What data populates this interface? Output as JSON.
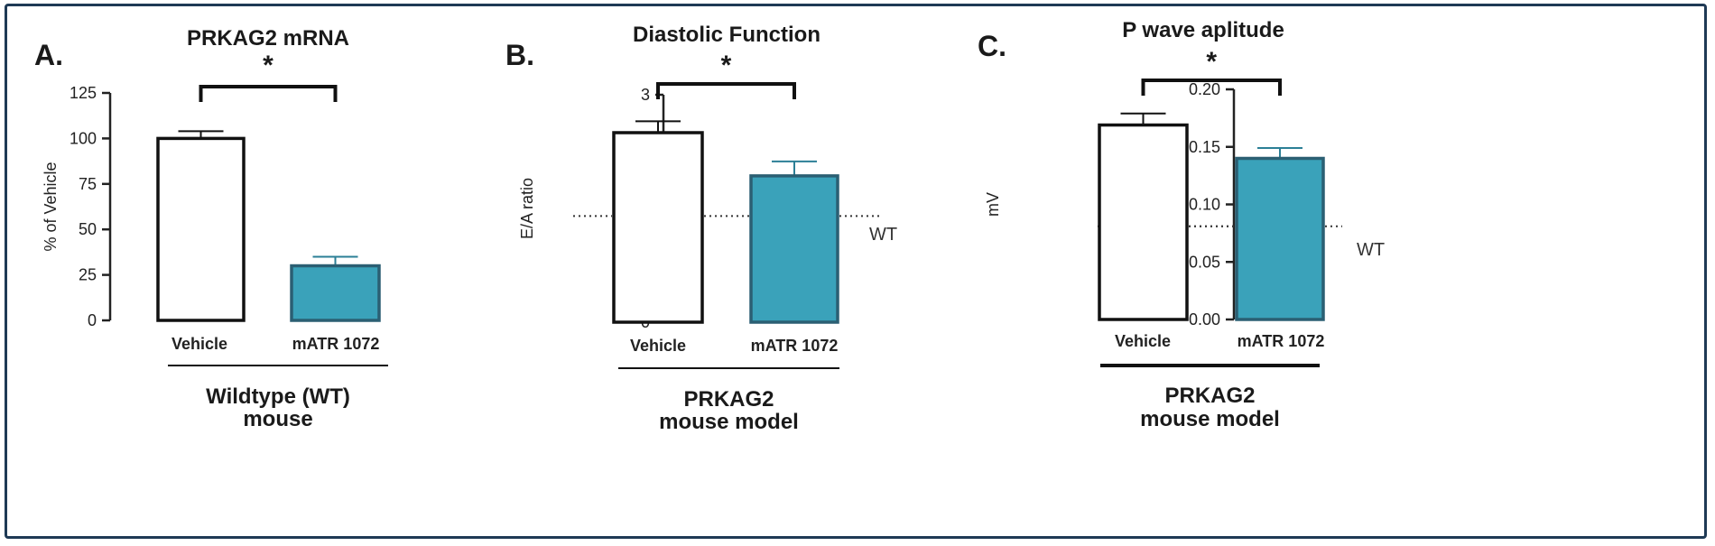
{
  "colors": {
    "frame": "#1f3a55",
    "vehicle_fill": "#ffffff",
    "treated_fill": "#3aa2ba",
    "treated_stroke": "#2b5f73",
    "ink": "#1a1a1a"
  },
  "chart_data": [
    {
      "type": "bar",
      "panel": "A.",
      "title": "PRKAG2 mRNA",
      "ylabel": "% of Vehicle",
      "ylim": [
        0,
        125
      ],
      "yticks": [
        0,
        25,
        50,
        75,
        100,
        125
      ],
      "categories": [
        "Vehicle",
        "mATR 1072"
      ],
      "values": [
        100,
        30
      ],
      "error": [
        4,
        5
      ],
      "group_label": [
        "Wildtype (WT)",
        "mouse"
      ],
      "significance": "*",
      "reference_line": null
    },
    {
      "type": "bar",
      "panel": "B.",
      "title": "Diastolic Function",
      "ylabel": "E/A ratio",
      "ylim": [
        0,
        3
      ],
      "yticks": [
        0,
        1,
        2,
        3
      ],
      "categories": [
        "Vehicle",
        "mATR 1072"
      ],
      "values": [
        2.5,
        1.93
      ],
      "error": [
        0.15,
        0.19
      ],
      "group_label": [
        "PRKAG2",
        "mouse model"
      ],
      "significance": "*",
      "reference_line": {
        "value": 1.4,
        "label": "WT"
      }
    },
    {
      "type": "bar",
      "panel": "C.",
      "title": "P wave aplitude",
      "ylabel": "mV",
      "ylim": [
        0,
        0.2
      ],
      "yticks": [
        "0.00",
        "0.05",
        "0.10",
        "0.15",
        "0.20"
      ],
      "categories": [
        "Vehicle",
        "mATR 1072"
      ],
      "values": [
        0.169,
        0.14
      ],
      "error": [
        0.01,
        0.009
      ],
      "group_label": [
        "PRKAG2",
        "mouse model"
      ],
      "significance": "*",
      "reference_line": {
        "value": 0.081,
        "label": "WT"
      }
    }
  ]
}
